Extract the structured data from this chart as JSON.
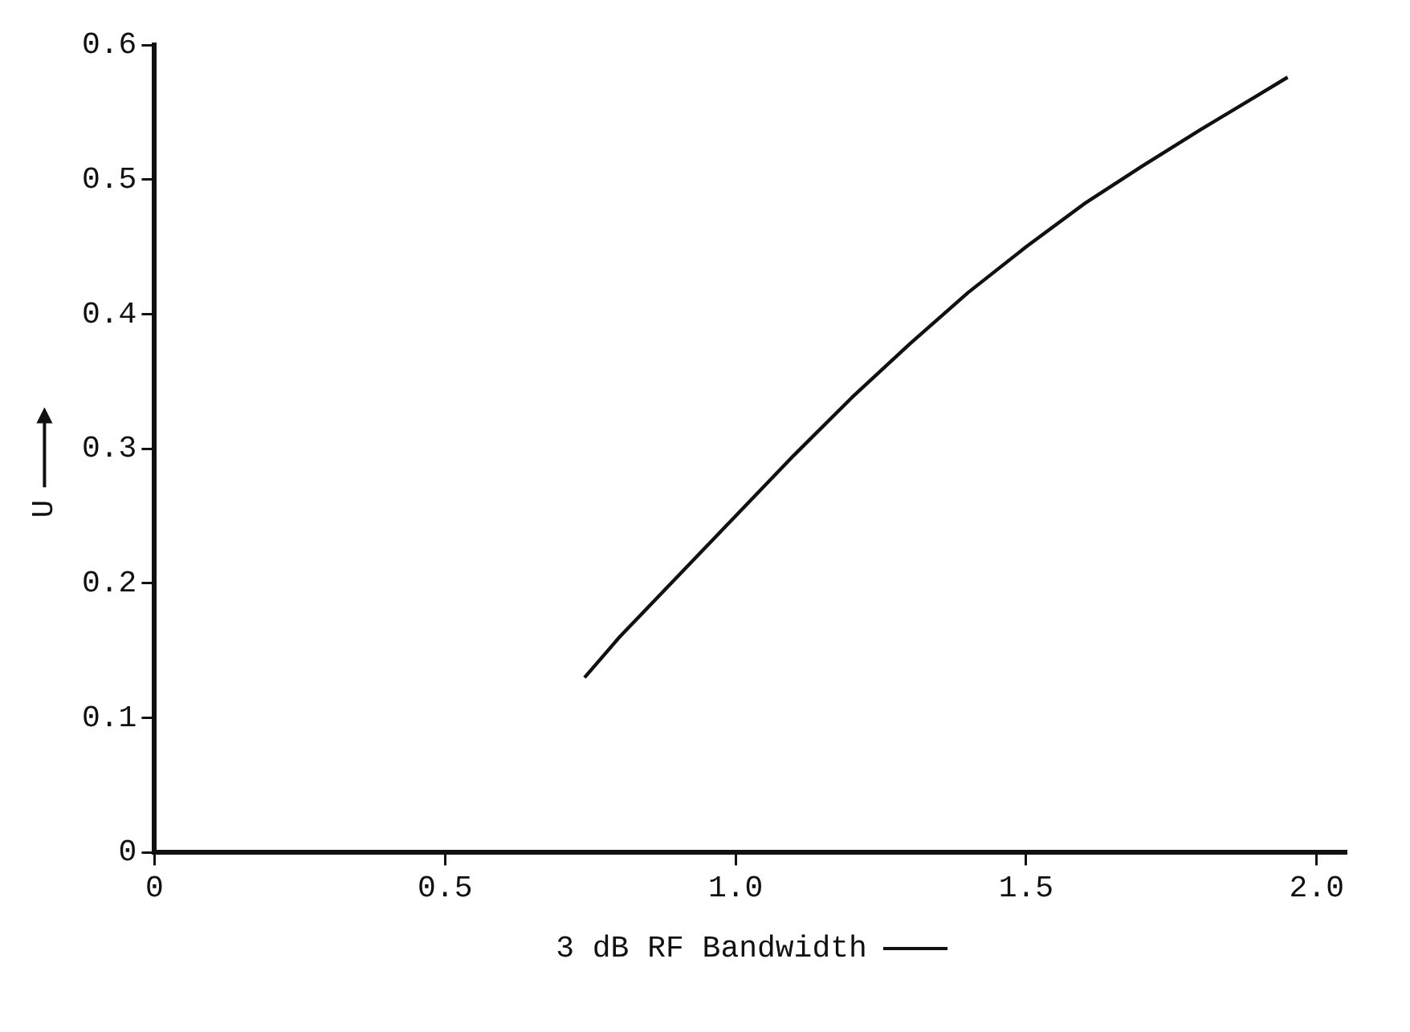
{
  "chart_data": {
    "type": "line",
    "xlabel": "3 dB RF Bandwidth",
    "ylabel": "U",
    "series": [
      {
        "color": "#111111",
        "x": [
          0.74,
          0.8,
          0.9,
          1.0,
          1.1,
          1.2,
          1.3,
          1.4,
          1.5,
          1.6,
          1.7,
          1.8,
          1.9,
          1.95
        ],
        "values": [
          0.13,
          0.16,
          0.205,
          0.25,
          0.295,
          0.338,
          0.378,
          0.416,
          0.45,
          0.482,
          0.51,
          0.537,
          0.563,
          0.576
        ]
      }
    ],
    "xlim": [
      0,
      2.05
    ],
    "xticks": [
      {
        "value": 0,
        "label": "0"
      },
      {
        "value": 0.5,
        "label": "0.5"
      },
      {
        "value": 1,
        "label": "1.0"
      },
      {
        "value": 1.5,
        "label": "1.5"
      },
      {
        "value": 2,
        "label": "2.0"
      }
    ],
    "ylim": [
      0,
      0.6
    ],
    "yticks": [
      0,
      0.1,
      0.2,
      0.3,
      0.4,
      0.5,
      0.6
    ],
    "grid": false,
    "legend": false,
    "marker": "none",
    "line_style": "solid"
  }
}
